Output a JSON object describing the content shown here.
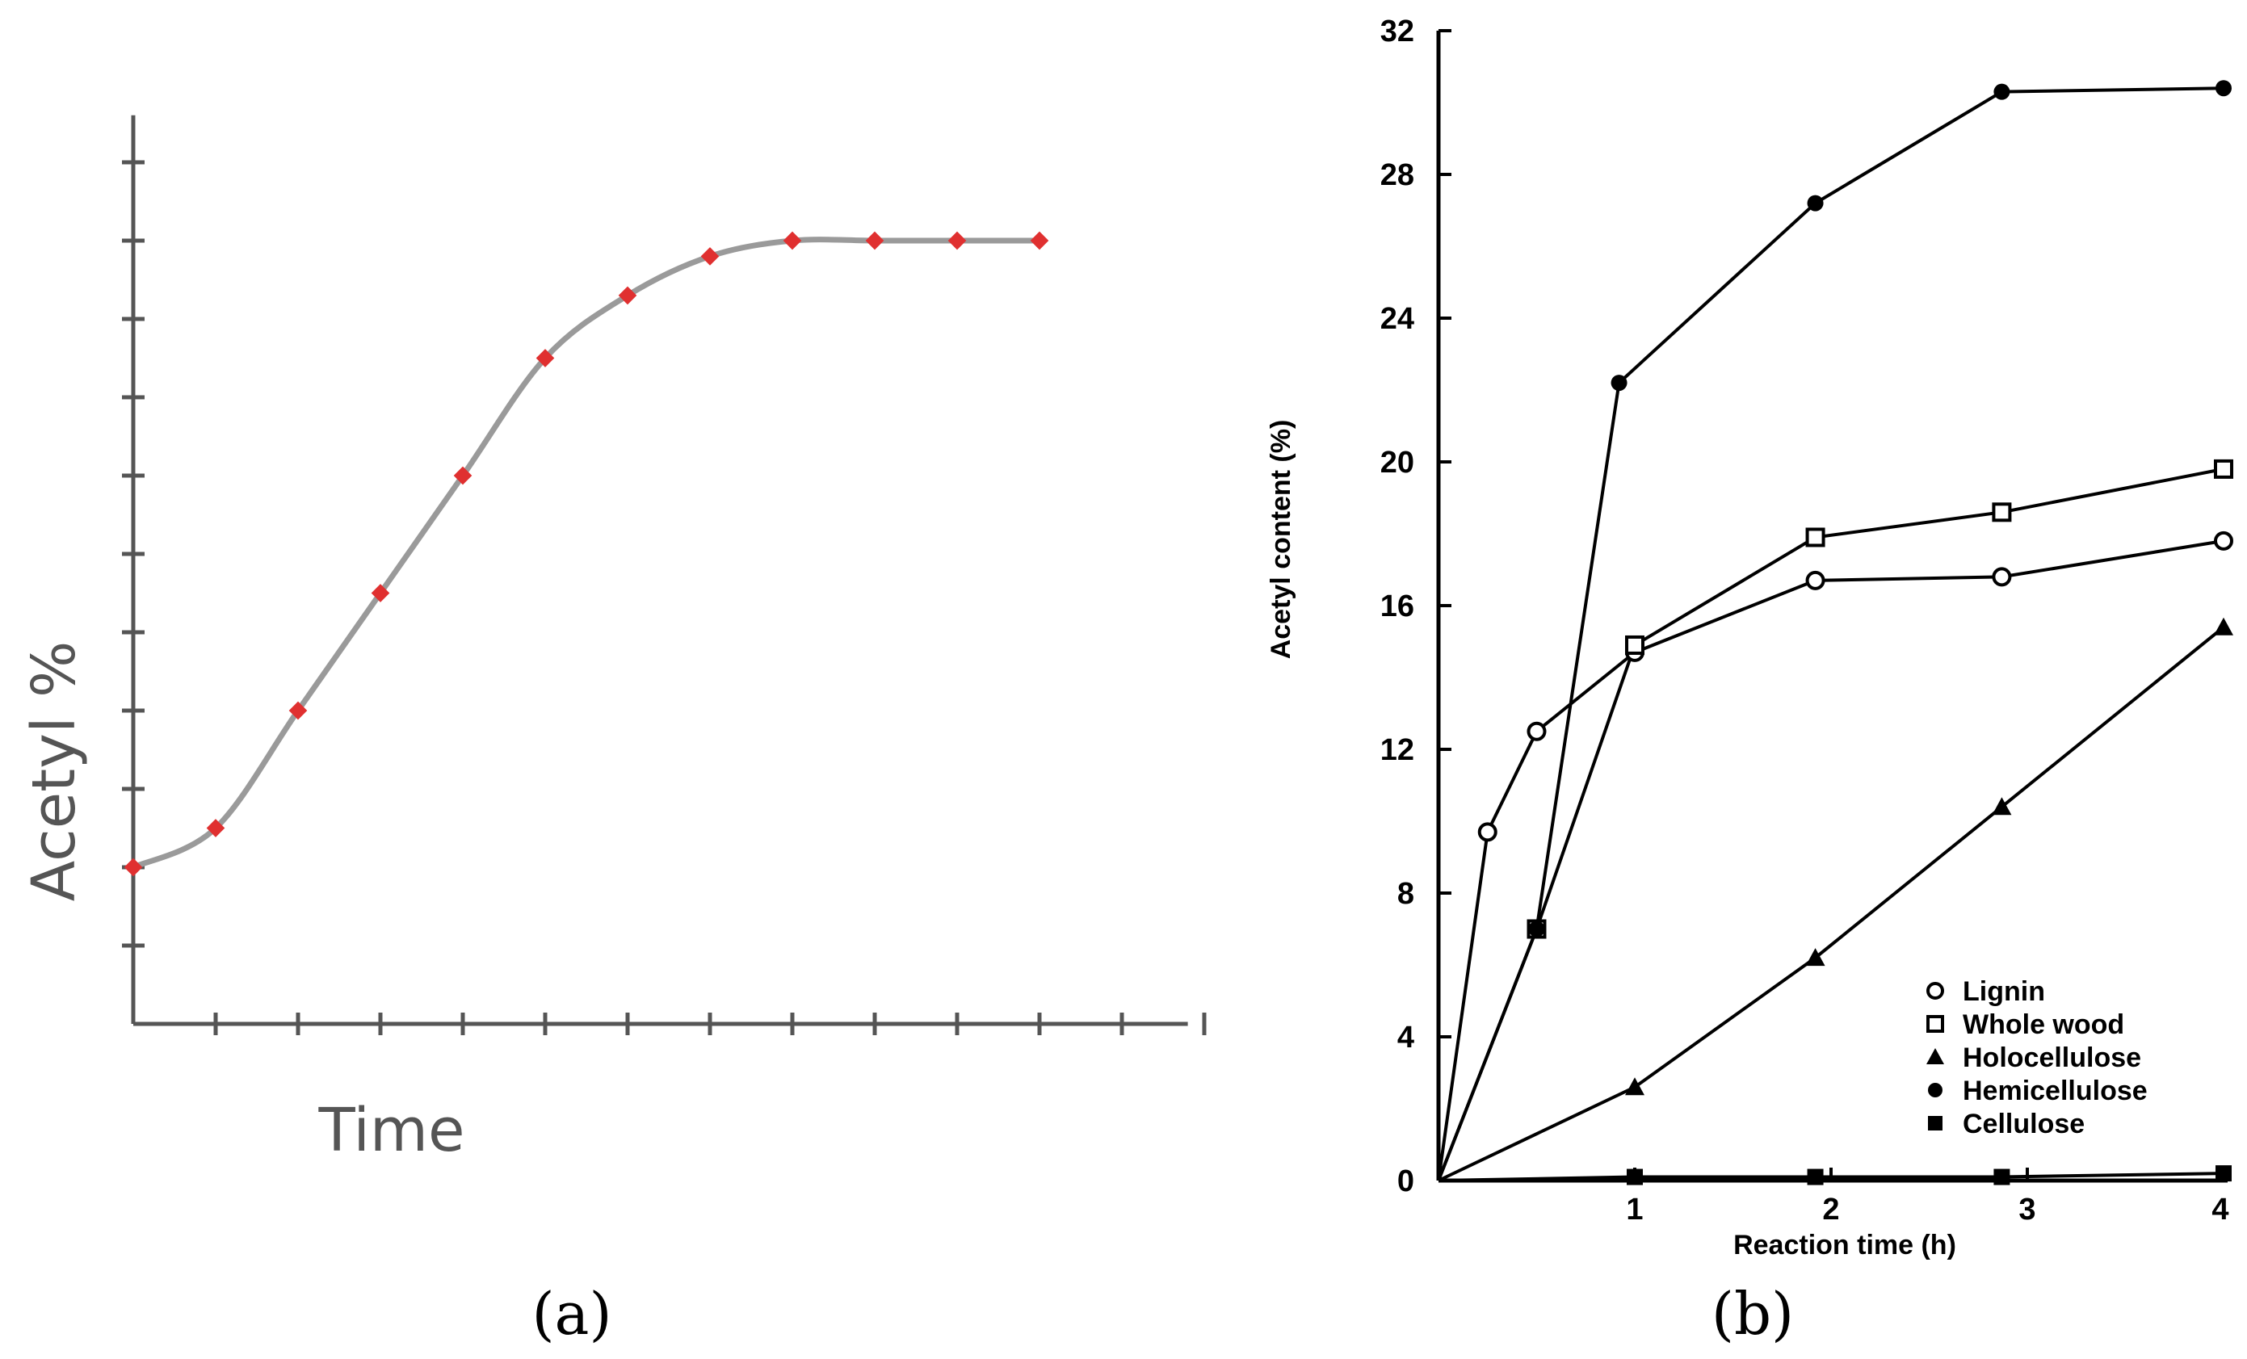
{
  "panel_a": {
    "caption": "(a)",
    "chart_data": {
      "type": "line",
      "title": "",
      "xlabel": "Time",
      "ylabel": "Acetyl %",
      "x_ticks": 13,
      "y_ticks": 11,
      "xlim": [
        0,
        12.5
      ],
      "ylim": [
        0,
        11
      ],
      "series": [
        {
          "name": "Acetyl",
          "x": [
            0,
            1,
            2,
            3,
            4,
            5,
            6,
            7,
            8,
            9,
            10,
            11
          ],
          "y": [
            2.0,
            2.5,
            4.0,
            5.5,
            7.0,
            8.5,
            9.3,
            9.8,
            10.0,
            10.0,
            10.0,
            10.0
          ],
          "marker_color": "#e03030",
          "line_color": "#9a9a9a"
        }
      ]
    }
  },
  "panel_b": {
    "caption": "(b)",
    "chart_data": {
      "type": "line",
      "title": "",
      "xlabel": "Reaction time (h)",
      "ylabel": "Acetyl content  (%)",
      "xlim": [
        0,
        4
      ],
      "ylim": [
        0,
        32
      ],
      "x_tick_values": [
        0,
        1,
        2,
        3,
        4
      ],
      "x_tick_labels": [
        "0",
        "1",
        "2",
        "3",
        "4"
      ],
      "y_tick_values": [
        4,
        8,
        12,
        16,
        20,
        24,
        28,
        32
      ],
      "y_tick_labels": [
        "4",
        "8",
        "12",
        "16",
        "20",
        "24",
        "28",
        "32"
      ],
      "legend_position": "bottom-right",
      "series": [
        {
          "name": "Lignin",
          "marker": "circle-open",
          "x": [
            0,
            0.25,
            0.5,
            1.0,
            1.92,
            2.87,
            4.0
          ],
          "y": [
            0,
            9.7,
            12.5,
            14.7,
            16.7,
            16.8,
            17.8
          ]
        },
        {
          "name": "Whole wood",
          "marker": "square-open",
          "x": [
            0,
            0.5,
            1.0,
            1.92,
            2.87,
            4.0
          ],
          "y": [
            0,
            7.0,
            14.9,
            17.9,
            18.6,
            19.8
          ]
        },
        {
          "name": "Holocellulose",
          "marker": "triangle-filled",
          "x": [
            0,
            1.0,
            1.92,
            2.87,
            4.0
          ],
          "y": [
            0,
            2.6,
            6.2,
            10.4,
            15.4
          ]
        },
        {
          "name": "Hemicellulose",
          "marker": "circle-filled",
          "x": [
            0,
            0.5,
            0.92,
            1.92,
            2.87,
            4.0
          ],
          "y": [
            0,
            7.0,
            22.2,
            27.2,
            30.3,
            30.4
          ]
        },
        {
          "name": "Cellulose",
          "marker": "square-filled",
          "x": [
            0,
            1.0,
            1.92,
            2.87,
            4.0
          ],
          "y": [
            0,
            0.1,
            0.1,
            0.1,
            0.2
          ]
        }
      ]
    }
  }
}
